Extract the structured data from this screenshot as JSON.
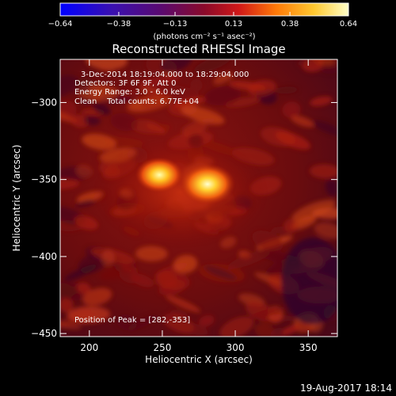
{
  "chart_data": {
    "type": "heatmap",
    "title": "Reconstructed RHESSI Image",
    "xlabel": "Heliocentric X (arcsec)",
    "ylabel": "Heliocentric Y (arcsec)",
    "xlim": [
      180,
      370
    ],
    "ylim": [
      -452,
      -272
    ],
    "x_ticks": [
      200,
      250,
      300,
      350
    ],
    "y_ticks": [
      -300,
      -350,
      -400,
      -450
    ],
    "x_tick_labels": [
      "200",
      "250",
      "300",
      "350"
    ],
    "y_tick_labels": [
      "−300",
      "−350",
      "−400",
      "−450"
    ],
    "colorbar": {
      "ticks": [
        -0.64,
        -0.38,
        -0.13,
        0.13,
        0.38,
        0.64
      ],
      "tick_labels": [
        "−0.64",
        "−0.38",
        "−0.13",
        "0.13",
        "0.38",
        "0.64"
      ],
      "unit_label": "(photons cm⁻² s⁻¹ asec⁻²)",
      "colormap": "rhessi-color-table-5"
    },
    "info_lines": [
      "3-Dec-2014 18:19:04.000 to 18:29:04.000",
      "Detectors: 3F 6F 9F, Att 0",
      "Energy Range: 3.0 - 6.0 keV",
      "Clean    Total counts: 6.77E+04"
    ],
    "peak_text": "Position of Peak = [282,-353]",
    "sources": [
      {
        "x": 248,
        "y": -347,
        "value": 0.55
      },
      {
        "x": 281,
        "y": -353,
        "value": 0.64
      }
    ],
    "value_range": [
      -0.64,
      0.64
    ]
  },
  "footer": {
    "date": "19-Aug-2017 18:14"
  },
  "colors": {
    "background": "#000000",
    "foreground": "#ffffff"
  }
}
